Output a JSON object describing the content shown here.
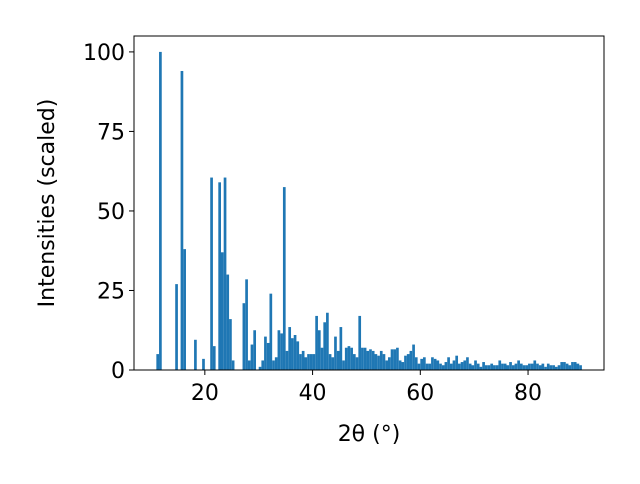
{
  "chart_data": {
    "type": "histogram",
    "xlabel": "2θ (°)",
    "ylabel": "Intensities (scaled)",
    "color": "#1f77b4",
    "bins": [
      10,
      10.5,
      11,
      11.5,
      12,
      12.5,
      13,
      13.5,
      14,
      14.5,
      15,
      15.5,
      16,
      16.5,
      17,
      17.5,
      18,
      18.5,
      19,
      19.5,
      20,
      20.5,
      21,
      21.5,
      22,
      22.5,
      23,
      23.5,
      24,
      24.5,
      25,
      25.5,
      26,
      26.5,
      27,
      27.5,
      28,
      28.5,
      29,
      29.5,
      30,
      30.5,
      31,
      31.5,
      32,
      32.5,
      33,
      33.5,
      34,
      34.5,
      35,
      35.5,
      36,
      36.5,
      37,
      37.5,
      38,
      38.5,
      39,
      39.5,
      40,
      40.5,
      41,
      41.5,
      42,
      42.5,
      43,
      43.5,
      44,
      44.5,
      45,
      45.5,
      46,
      46.5,
      47,
      47.5,
      48,
      48.5,
      49,
      49.5,
      50,
      50.5,
      51,
      51.5,
      52,
      52.5,
      53,
      53.5,
      54,
      54.5,
      55,
      55.5,
      56,
      56.5,
      57,
      57.5,
      58,
      58.5,
      59,
      59.5,
      60,
      60.5,
      61,
      61.5,
      62,
      62.5,
      63,
      63.5,
      64,
      64.5,
      65,
      65.5,
      66,
      66.5,
      67,
      67.5,
      68,
      68.5,
      69,
      69.5,
      70,
      70.5,
      71,
      71.5,
      72,
      72.5,
      73,
      73.5,
      74,
      74.5,
      75,
      75.5,
      76,
      76.5,
      77,
      77.5,
      78,
      78.5,
      79,
      79.5,
      80,
      80.5,
      81,
      81.5,
      82,
      82.5,
      83,
      83.5,
      84,
      84.5,
      85,
      85.5,
      86,
      86.5,
      87,
      87.5,
      88,
      88.5,
      89,
      89.5,
      90
    ],
    "counts": [
      0,
      0,
      5,
      100,
      0,
      0,
      0,
      0,
      0,
      27,
      0,
      94,
      38,
      0,
      0,
      0,
      9.5,
      0,
      0,
      3.5,
      0,
      0,
      60.5,
      7.5,
      0,
      59,
      37,
      60.5,
      30,
      16,
      3,
      0,
      0,
      0,
      21,
      28.5,
      3,
      8,
      12.5,
      0,
      1,
      3,
      10.5,
      8.5,
      24,
      3,
      4,
      12.5,
      11.5,
      57.5,
      6,
      13.5,
      10,
      11,
      9,
      5,
      6,
      4,
      5,
      5,
      5,
      17,
      12.5,
      7,
      15,
      18,
      5,
      4,
      10.5,
      6,
      13.5,
      3,
      7,
      7.5,
      7,
      5,
      4,
      17,
      7,
      7,
      6,
      6.5,
      6,
      5,
      4.5,
      6,
      5,
      3,
      4,
      6.5,
      6.5,
      7,
      3,
      2.5,
      4.5,
      5,
      6,
      8,
      4,
      2,
      3.5,
      4,
      2,
      2,
      4,
      3.5,
      3,
      2,
      1.5,
      2.5,
      4,
      2,
      3,
      4.5,
      2,
      2.5,
      3,
      4,
      2,
      1.5,
      3,
      2,
      1,
      2.5,
      1.5,
      1.5,
      2,
      1.5,
      1.5,
      3,
      2,
      2,
      1.5,
      2.5,
      1.5,
      2,
      3,
      2,
      1.5,
      1.5,
      2,
      2,
      3,
      2,
      1.5,
      2,
      1,
      2,
      1.5,
      1.5,
      1,
      1.5,
      2.5,
      2.5,
      2,
      1.5,
      2.5,
      2.5,
      2,
      1.5
    ],
    "xlim": [
      6.85,
      94.1
    ],
    "ylim": [
      0,
      105
    ],
    "xticks": [
      20,
      40,
      60,
      80
    ],
    "yticks": [
      0,
      25,
      50,
      75,
      100
    ]
  }
}
